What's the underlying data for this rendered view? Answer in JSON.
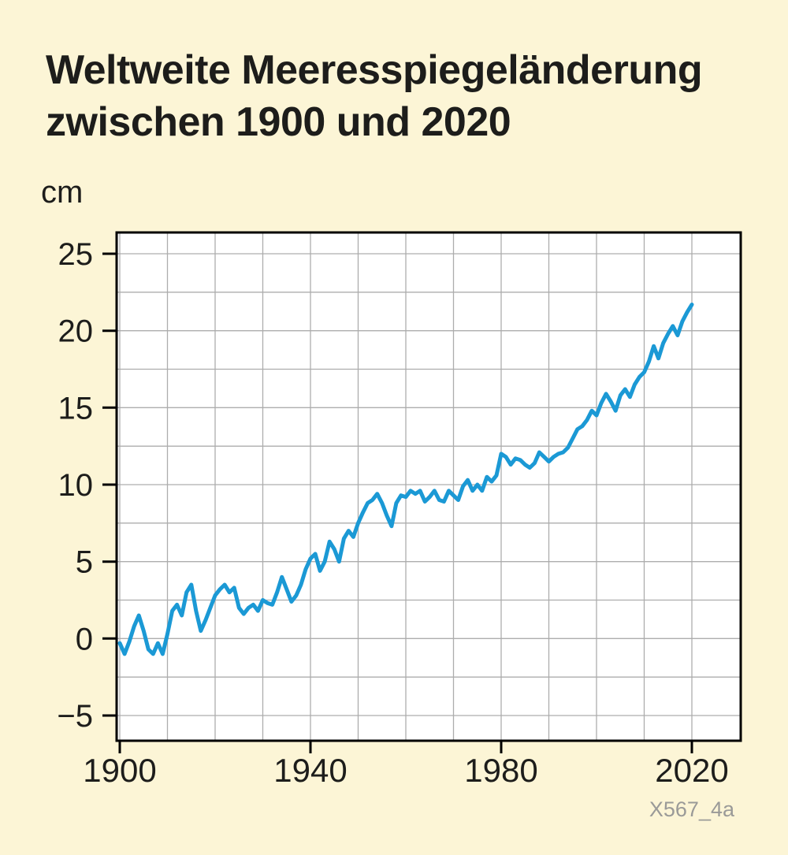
{
  "page": {
    "title_line1": "Weltweite Meeresspiegeländerung",
    "title_line2": "zwischen 1900 und 2020",
    "unit_label": "cm",
    "source_label": "X567_4a",
    "background_color": "#FCF5D6",
    "title_color": "#1d1d1b",
    "source_color": "#9a9a98"
  },
  "chart_data": {
    "type": "line",
    "title": "Weltweite Meeresspiegeländerung zwischen 1900 und 2020",
    "xlabel": "",
    "ylabel": "cm",
    "xlim": [
      1900,
      2020
    ],
    "ylim": [
      -5,
      25
    ],
    "x_ticks": [
      1900,
      1940,
      1980,
      2020
    ],
    "x_tick_labels": [
      "1900",
      "1940",
      "1980",
      "2020"
    ],
    "y_ticks": [
      -5,
      0,
      5,
      10,
      15,
      20,
      25
    ],
    "y_tick_labels": [
      "−5",
      "0",
      "5",
      "10",
      "15",
      "20",
      "25"
    ],
    "x_grid_step": 10,
    "y_grid_step": 2.5,
    "grid": true,
    "legend_position": "none",
    "line_color": "#1B99D5",
    "grid_color": "#ADADAD",
    "axis_color": "#000000",
    "plot_bg": "#FFFFFF",
    "x": [
      1900,
      1901,
      1902,
      1903,
      1904,
      1905,
      1906,
      1907,
      1908,
      1909,
      1910,
      1911,
      1912,
      1913,
      1914,
      1915,
      1916,
      1917,
      1918,
      1919,
      1920,
      1921,
      1922,
      1923,
      1924,
      1925,
      1926,
      1927,
      1928,
      1929,
      1930,
      1931,
      1932,
      1933,
      1934,
      1935,
      1936,
      1937,
      1938,
      1939,
      1940,
      1941,
      1942,
      1943,
      1944,
      1945,
      1946,
      1947,
      1948,
      1949,
      1950,
      1951,
      1952,
      1953,
      1954,
      1955,
      1956,
      1957,
      1958,
      1959,
      1960,
      1961,
      1962,
      1963,
      1964,
      1965,
      1966,
      1967,
      1968,
      1969,
      1970,
      1971,
      1972,
      1973,
      1974,
      1975,
      1976,
      1977,
      1978,
      1979,
      1980,
      1981,
      1982,
      1983,
      1984,
      1985,
      1986,
      1987,
      1988,
      1989,
      1990,
      1991,
      1992,
      1993,
      1994,
      1995,
      1996,
      1997,
      1998,
      1999,
      2000,
      2001,
      2002,
      2003,
      2004,
      2005,
      2006,
      2007,
      2008,
      2009,
      2010,
      2011,
      2012,
      2013,
      2014,
      2015,
      2016,
      2017,
      2018,
      2019,
      2020
    ],
    "values": [
      -0.3,
      -1.0,
      -0.2,
      0.8,
      1.5,
      0.5,
      -0.7,
      -1.0,
      -0.3,
      -1.0,
      0.3,
      1.8,
      2.2,
      1.5,
      3.0,
      3.5,
      1.8,
      0.5,
      1.2,
      2.0,
      2.8,
      3.2,
      3.5,
      3.0,
      3.3,
      2.0,
      1.6,
      2.0,
      2.2,
      1.8,
      2.5,
      2.3,
      2.2,
      3.0,
      4.0,
      3.2,
      2.4,
      2.8,
      3.5,
      4.5,
      5.2,
      5.5,
      4.4,
      5.0,
      6.3,
      5.8,
      5.0,
      6.5,
      7.0,
      6.6,
      7.5,
      8.2,
      8.8,
      9.0,
      9.4,
      8.8,
      8.0,
      7.3,
      8.8,
      9.3,
      9.2,
      9.6,
      9.4,
      9.6,
      8.9,
      9.2,
      9.6,
      9.0,
      8.9,
      9.6,
      9.3,
      9.0,
      9.9,
      10.3,
      9.6,
      10.0,
      9.6,
      10.5,
      10.2,
      10.6,
      12.0,
      11.8,
      11.3,
      11.7,
      11.6,
      11.3,
      11.1,
      11.4,
      12.1,
      11.8,
      11.5,
      11.8,
      12.0,
      12.1,
      12.4,
      13.0,
      13.6,
      13.8,
      14.2,
      14.8,
      14.5,
      15.3,
      15.9,
      15.4,
      14.8,
      15.8,
      16.2,
      15.7,
      16.5,
      17.0,
      17.3,
      18.0,
      19.0,
      18.2,
      19.2,
      19.8,
      20.3,
      19.7,
      20.6,
      21.2,
      21.7
    ]
  }
}
